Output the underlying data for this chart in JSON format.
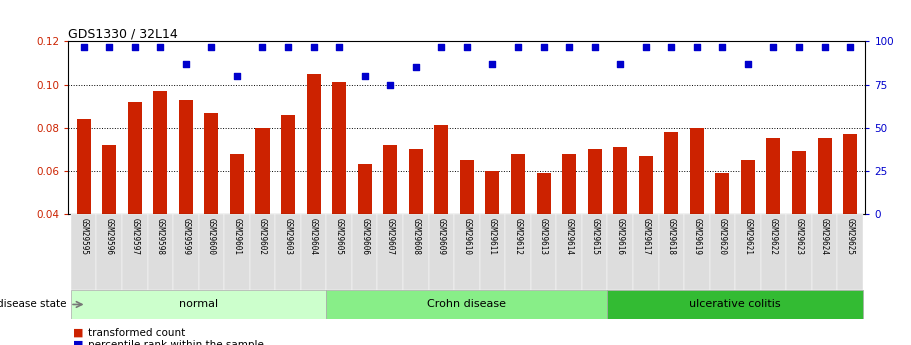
{
  "title": "GDS1330 / 32L14",
  "samples": [
    "GSM29595",
    "GSM29596",
    "GSM29597",
    "GSM29598",
    "GSM29599",
    "GSM29600",
    "GSM29601",
    "GSM29602",
    "GSM29603",
    "GSM29604",
    "GSM29605",
    "GSM29606",
    "GSM29607",
    "GSM29608",
    "GSM29609",
    "GSM29610",
    "GSM29611",
    "GSM29612",
    "GSM29613",
    "GSM29614",
    "GSM29615",
    "GSM29616",
    "GSM29617",
    "GSM29618",
    "GSM29619",
    "GSM29620",
    "GSM29621",
    "GSM29622",
    "GSM29623",
    "GSM29624",
    "GSM29625"
  ],
  "bar_values": [
    0.084,
    0.072,
    0.092,
    0.097,
    0.093,
    0.087,
    0.068,
    0.08,
    0.086,
    0.105,
    0.101,
    0.063,
    0.072,
    0.07,
    0.081,
    0.065,
    0.06,
    0.068,
    0.059,
    0.068,
    0.07,
    0.071,
    0.067,
    0.078,
    0.08,
    0.059,
    0.065,
    0.075,
    0.069,
    0.075,
    0.077
  ],
  "dot_values": [
    97,
    97,
    97,
    97,
    87,
    97,
    80,
    97,
    97,
    97,
    97,
    80,
    75,
    85,
    97,
    97,
    87,
    97,
    97,
    97,
    97,
    87,
    97,
    97,
    97,
    97,
    87,
    97,
    97,
    97,
    97
  ],
  "bar_color": "#cc2200",
  "dot_color": "#0000cc",
  "ylim_left": [
    0.04,
    0.12
  ],
  "ylim_right": [
    0,
    100
  ],
  "yticks_left": [
    0.04,
    0.06,
    0.08,
    0.1,
    0.12
  ],
  "yticks_right": [
    0,
    25,
    50,
    75,
    100
  ],
  "groups": [
    {
      "label": "normal",
      "start": 0,
      "end": 10,
      "color": "#ccffcc"
    },
    {
      "label": "Crohn disease",
      "start": 10,
      "end": 21,
      "color": "#88ee88"
    },
    {
      "label": "ulcerative colitis",
      "start": 21,
      "end": 31,
      "color": "#33bb33"
    }
  ],
  "legend_bar_label": "transformed count",
  "legend_dot_label": "percentile rank within the sample",
  "disease_state_label": "disease state",
  "background_color": "#ffffff"
}
